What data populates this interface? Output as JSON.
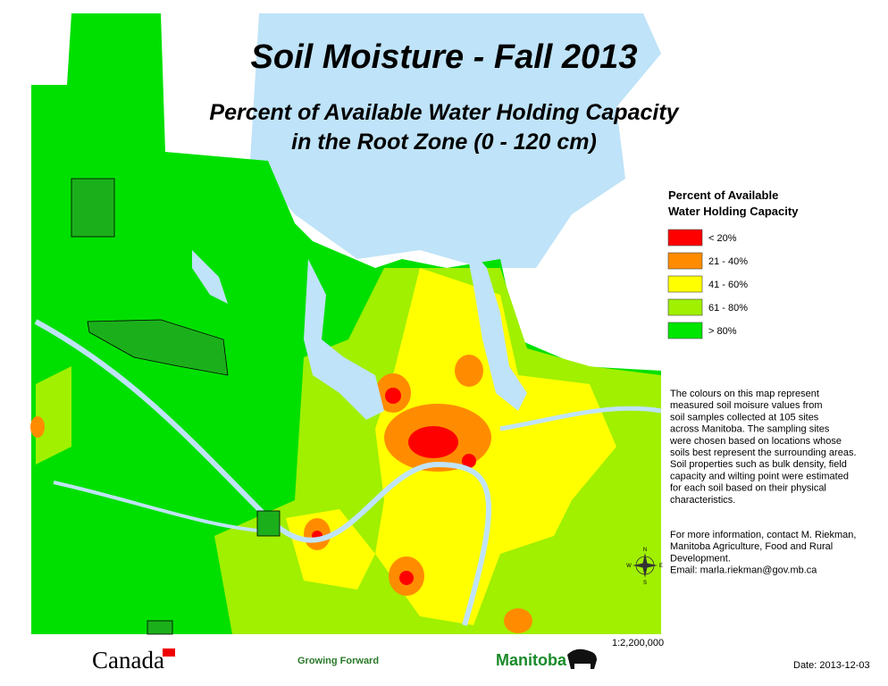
{
  "title": "Soil Moisture - Fall 2013",
  "subtitle": [
    "Percent of Available Water Holding Capacity",
    "in the Root Zone (0 - 120 cm)"
  ],
  "legend": {
    "title": [
      "Percent of Available",
      "Water Holding Capacity"
    ],
    "items": [
      {
        "label": "< 20%",
        "color": "#ff0000"
      },
      {
        "label": "21 - 40%",
        "color": "#ff8c00"
      },
      {
        "label": "41 - 60%",
        "color": "#ffff00"
      },
      {
        "label": "61 - 80%",
        "color": "#a0f000"
      },
      {
        "label": "> 80%",
        "color": "#00e600"
      }
    ]
  },
  "description": [
    "The colours on this map represent",
    "measured soil moisure values from",
    "soil samples collected at 105 sites",
    "across Manitoba. The sampling sites",
    "were chosen based on locations whose",
    "soils best represent the surrounding areas.",
    "Soil properties such as bulk density, field",
    "capacity and wilting point were estimated",
    "for each soil based on their physical",
    "characteristics."
  ],
  "contact": [
    "For more information, contact M. Riekman,",
    "Manitoba Agriculture, Food and Rural",
    "Development.",
    "Email: marla.riekman@gov.mb.ca"
  ],
  "compass": [
    "N",
    "E",
    "S",
    "W"
  ],
  "scale": "1:2,200,000",
  "date": "Date: 2013-12-03",
  "logos": [
    "Canada",
    "Growing Forward",
    "Manitoba"
  ]
}
